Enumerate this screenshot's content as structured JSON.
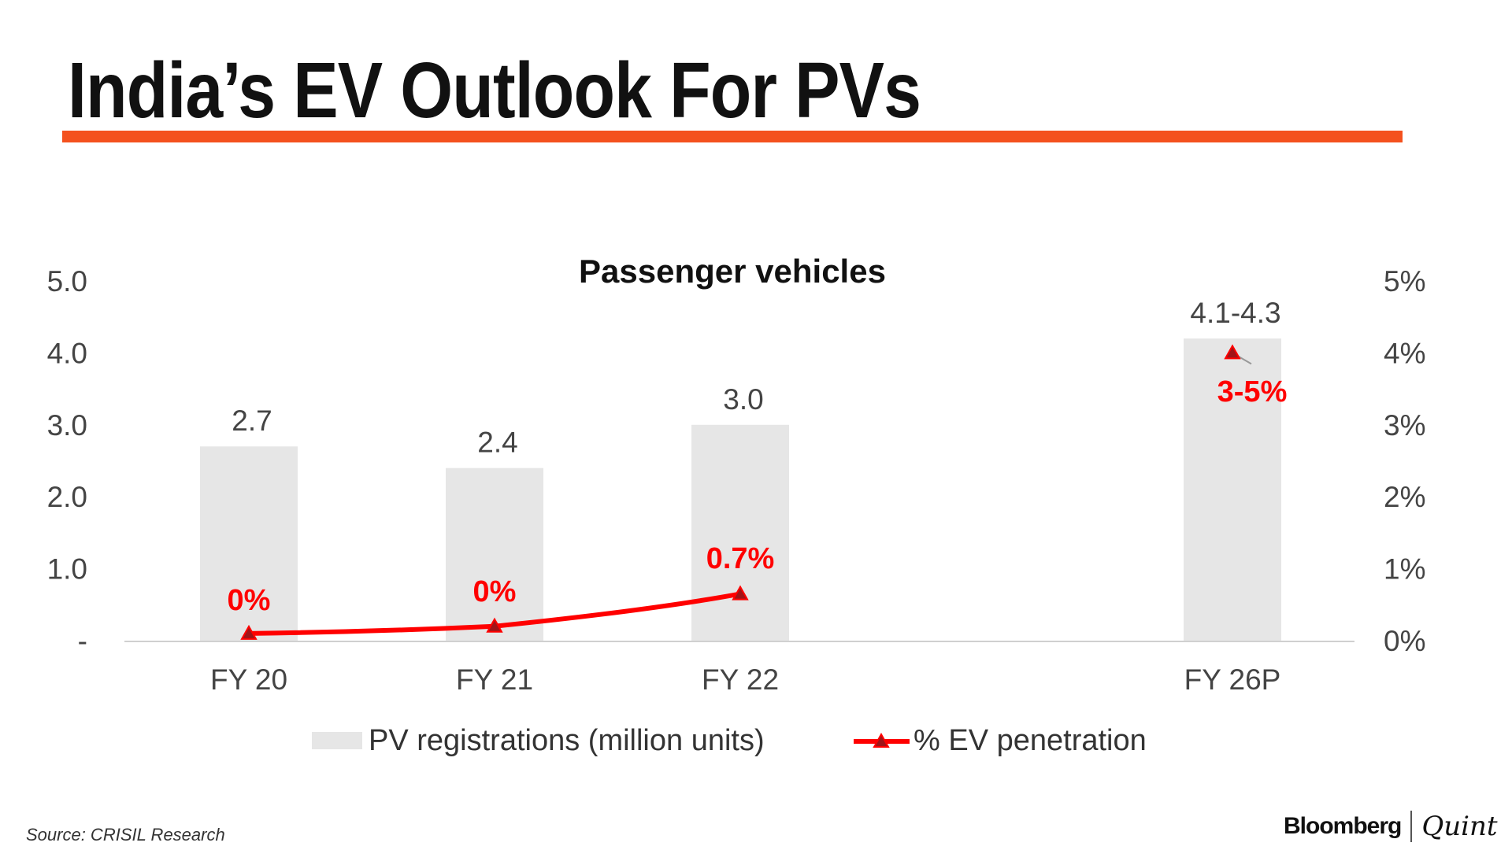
{
  "title": "India’s EV Outlook For PVs",
  "source": "Source: CRISIL Research",
  "logo": {
    "brand": "Bloomberg",
    "sub": "Quint"
  },
  "chart_data": {
    "type": "bar+line",
    "title": "Passenger vehicles",
    "categories": [
      "FY 20",
      "FY 21",
      "FY 22",
      "FY 26P"
    ],
    "series": [
      {
        "name": "PV registrations (million units)",
        "type": "bar",
        "axis": "left",
        "values": [
          2.7,
          2.4,
          3.0,
          4.2
        ],
        "labels": [
          "2.7",
          "2.4",
          "3.0",
          "4.1-4.3"
        ],
        "color": "#E6E6E6"
      },
      {
        "name": "% EV penetration",
        "type": "line",
        "axis": "right",
        "values": [
          0.1,
          0.2,
          0.65,
          4.0
        ],
        "labels": [
          "0%",
          "0%",
          "0.7%",
          "3-5%"
        ],
        "color": "#FF0000"
      }
    ],
    "left_axis": {
      "ylim": [
        0,
        5
      ],
      "ticks": [
        "-",
        "1.0",
        "2.0",
        "3.0",
        "4.0",
        "5.0"
      ]
    },
    "right_axis": {
      "ylim": [
        0,
        5
      ],
      "ticks": [
        "0%",
        "1%",
        "2%",
        "3%",
        "4%",
        "5%"
      ]
    },
    "legend": "bottom",
    "grid": false
  }
}
